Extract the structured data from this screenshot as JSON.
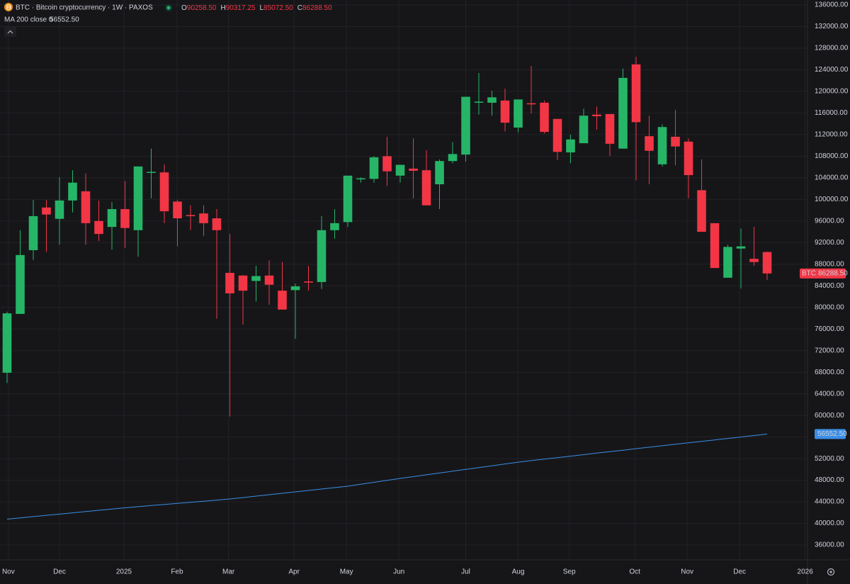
{
  "chart_data": {
    "type": "candlestick",
    "title": "BTC · Bitcoin cryptocurrency · 1W · PAXOS",
    "ohlc": [
      {
        "key": "O",
        "value": "90258.50"
      },
      {
        "key": "H",
        "value": "90317.25"
      },
      {
        "key": "L",
        "value": "85072.50"
      },
      {
        "key": "C",
        "value": "86288.50"
      }
    ],
    "series": [
      {
        "name": "BTC",
        "up_color": "#26b567",
        "down_color": "#f23645",
        "open": [
          67900,
          78800,
          90600,
          98500,
          96400,
          99800,
          101500,
          96000,
          94900,
          98200,
          94300,
          105000,
          105000,
          99600,
          97100,
          97400,
          96500,
          86400,
          85900,
          84900,
          85900,
          83100,
          83200,
          84800,
          84700,
          94300,
          95800,
          103800,
          103800,
          108000,
          104400,
          105700,
          105400,
          102800,
          107100,
          108300,
          118000,
          117900,
          118300,
          113300,
          117800,
          117900,
          114900,
          108700,
          110400,
          115700,
          115800,
          109400,
          125000,
          111700,
          106500,
          111600,
          110700,
          101700,
          95600,
          85500,
          90900,
          89000,
          90258.5
        ],
        "high": [
          79200,
          94300,
          99900,
          99900,
          104100,
          105400,
          104800,
          99800,
          99500,
          103400,
          106100,
          109400,
          106500,
          99900,
          98900,
          98900,
          98200,
          93600,
          86000,
          87700,
          88700,
          88400,
          84400,
          87700,
          96900,
          98200,
          104400,
          104100,
          108000,
          111600,
          106400,
          111300,
          109100,
          107400,
          110600,
          119000,
          123400,
          120100,
          120500,
          118500,
          124700,
          118300,
          114900,
          112000,
          116800,
          117200,
          115800,
          124200,
          126400,
          115500,
          113900,
          116600,
          111300,
          107400,
          95600,
          91600,
          94600,
          94900,
          90317.25
        ],
        "low": [
          66000,
          78800,
          88800,
          90300,
          91600,
          97600,
          91600,
          92300,
          90700,
          91000,
          89400,
          100200,
          95600,
          91300,
          94300,
          93200,
          77900,
          59800,
          76800,
          81100,
          80500,
          79600,
          74200,
          83100,
          83400,
          92700,
          94900,
          103100,
          103100,
          102500,
          103100,
          100200,
          98900,
          98200,
          106700,
          107000,
          115700,
          115500,
          112600,
          112400,
          115900,
          112200,
          107300,
          106700,
          110400,
          112900,
          108000,
          109400,
          103500,
          102800,
          106100,
          106300,
          100200,
          94000,
          87300,
          85500,
          83500,
          87700,
          85072.5
        ],
        "close": [
          78900,
          89700,
          96900,
          97200,
          99800,
          103100,
          95600,
          93600,
          98200,
          94700,
          106100,
          105100,
          97800,
          96500,
          96900,
          95600,
          94300,
          82600,
          83100,
          85800,
          84200,
          79600,
          83900,
          84600,
          94300,
          95600,
          104400,
          103900,
          107800,
          105200,
          106400,
          105300,
          98900,
          107100,
          108400,
          119000,
          118100,
          118900,
          114200,
          118500,
          117600,
          112500,
          108800,
          111100,
          115500,
          115400,
          110300,
          122500,
          114300,
          109000,
          113400,
          109800,
          104500,
          94000,
          87300,
          91200,
          91300,
          88400,
          86288.5
        ]
      },
      {
        "name": "MA 200 close 0",
        "color": "#3a8ee6",
        "value_label": "56552.50",
        "values": [
          40800,
          41030,
          41270,
          41500,
          41730,
          41970,
          42200,
          42430,
          42670,
          42900,
          43100,
          43310,
          43510,
          43720,
          43920,
          44120,
          44330,
          44530,
          44790,
          45060,
          45320,
          45580,
          45850,
          46110,
          46370,
          46640,
          46900,
          47260,
          47620,
          47980,
          48340,
          48670,
          49010,
          49340,
          49680,
          50010,
          50350,
          50680,
          51020,
          51350,
          51630,
          51910,
          52180,
          52460,
          52740,
          53020,
          53290,
          53570,
          53850,
          54120,
          54390,
          54660,
          54930,
          55200,
          55470,
          55740,
          56010,
          56280,
          56552.5
        ]
      }
    ],
    "xlim": [
      -0.54,
      61.08
    ],
    "xticks": [
      {
        "value": 0.1,
        "label": "Nov"
      },
      {
        "value": 4,
        "label": "Dec"
      },
      {
        "value": 8.92,
        "label": "2025"
      },
      {
        "value": 12.97,
        "label": "Feb"
      },
      {
        "value": 16.9,
        "label": "Mar"
      },
      {
        "value": 21.9,
        "label": "Apr"
      },
      {
        "value": 25.9,
        "label": "May"
      },
      {
        "value": 29.9,
        "label": "Jun"
      },
      {
        "value": 35,
        "label": "Jul"
      },
      {
        "value": 39,
        "label": "Aug"
      },
      {
        "value": 42.9,
        "label": "Sep"
      },
      {
        "value": 47.9,
        "label": "Oct"
      },
      {
        "value": 51.9,
        "label": "Nov"
      },
      {
        "value": 55.9,
        "label": "Dec"
      },
      {
        "value": 60.9,
        "label": "2026"
      }
    ],
    "ylim": [
      33250,
      136920
    ],
    "yticks": [
      {
        "value": 36000,
        "label": "36000.00"
      },
      {
        "value": 40000,
        "label": "40000.00"
      },
      {
        "value": 44000,
        "label": "44000.00"
      },
      {
        "value": 48000,
        "label": "48000.00"
      },
      {
        "value": 52000,
        "label": "52000.00"
      },
      {
        "value": 56000,
        "label": "56000.00"
      },
      {
        "value": 60000,
        "label": "60000.00"
      },
      {
        "value": 64000,
        "label": "64000.00"
      },
      {
        "value": 68000,
        "label": "68000.00"
      },
      {
        "value": 72000,
        "label": "72000.00"
      },
      {
        "value": 76000,
        "label": "76000.00"
      },
      {
        "value": 80000,
        "label": "80000.00"
      },
      {
        "value": 84000,
        "label": "84000.00"
      },
      {
        "value": 88000,
        "label": "88000.00"
      },
      {
        "value": 92000,
        "label": "92000.00"
      },
      {
        "value": 96000,
        "label": "96000.00"
      },
      {
        "value": 100000,
        "label": "100000.00"
      },
      {
        "value": 104000,
        "label": "104000.00"
      },
      {
        "value": 108000,
        "label": "108000.00"
      },
      {
        "value": 112000,
        "label": "112000.00"
      },
      {
        "value": 116000,
        "label": "116000.00"
      },
      {
        "value": 120000,
        "label": "120000.00"
      },
      {
        "value": 124000,
        "label": "124000.00"
      },
      {
        "value": 128000,
        "label": "128000.00"
      },
      {
        "value": 132000,
        "label": "132000.00"
      },
      {
        "value": 136000,
        "label": "136000.00"
      }
    ],
    "grid": true
  }
}
